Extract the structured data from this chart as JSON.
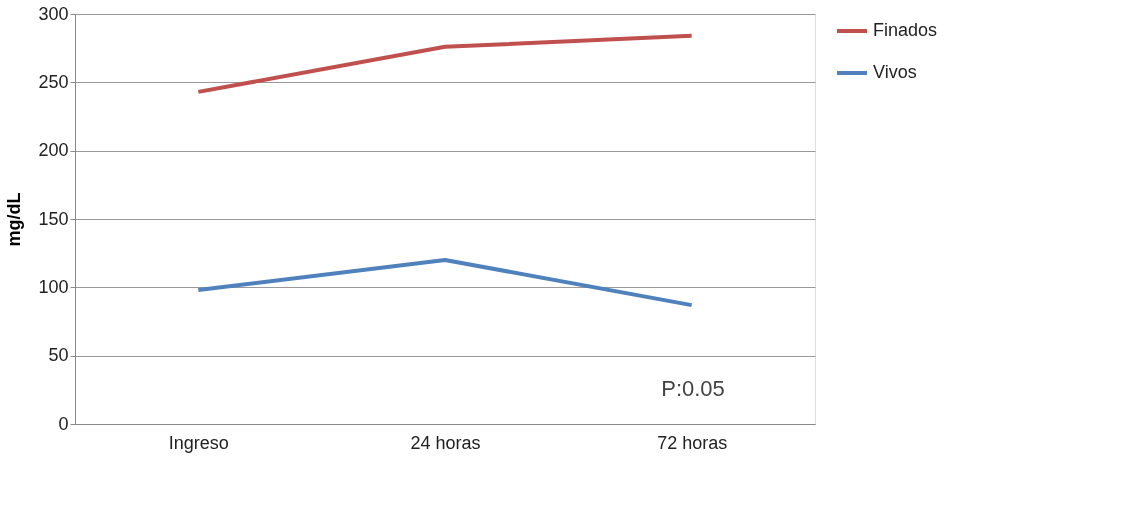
{
  "chart_data": {
    "type": "line",
    "ylabel": "mg/dL",
    "categories": [
      "Ingreso",
      "24 horas",
      "72 horas"
    ],
    "series": [
      {
        "name": "Finados",
        "color": "#c0504d",
        "values": [
          243,
          276,
          284
        ]
      },
      {
        "name": "Vivos",
        "color": "#4f81bd",
        "values": [
          98,
          120,
          87
        ]
      }
    ],
    "ylim": [
      0,
      300
    ],
    "yticks": [
      0,
      50,
      100,
      150,
      200,
      250,
      300
    ],
    "grid": "y",
    "legend": "right",
    "marker": "none",
    "line_style": "solid",
    "annotations": [
      "P:0.05"
    ]
  }
}
